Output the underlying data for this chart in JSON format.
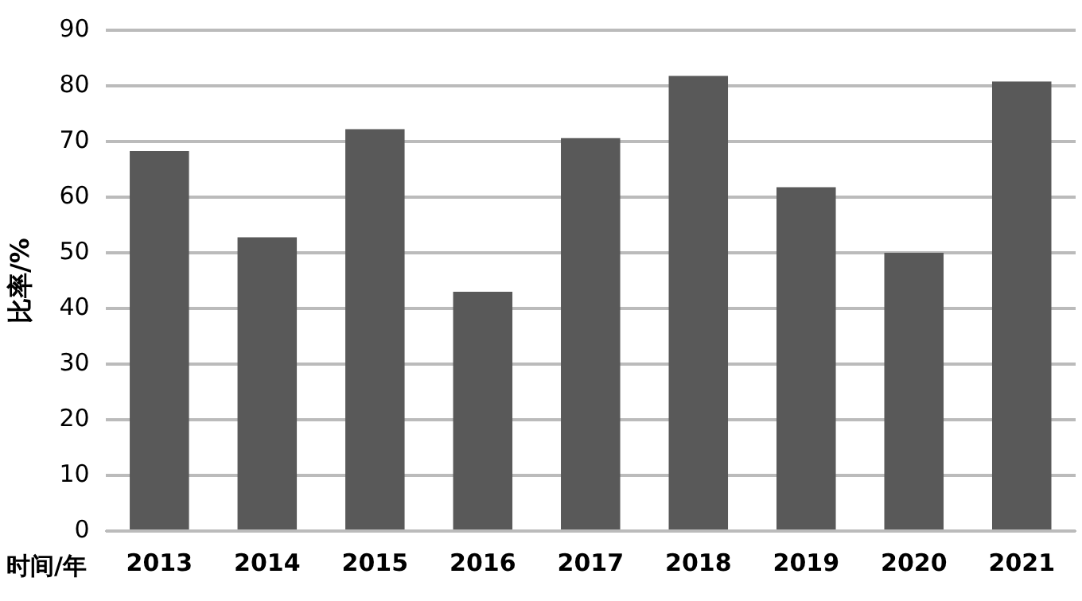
{
  "chart_data": {
    "type": "bar",
    "xlabel": "时间/年",
    "ylabel": "比率/%",
    "categories": [
      "2013",
      "2014",
      "2015",
      "2016",
      "2017",
      "2018",
      "2019",
      "2020",
      "2021"
    ],
    "values": [
      68.3,
      52.8,
      72.2,
      43,
      70.6,
      81.8,
      61.8,
      50,
      80.8
    ],
    "color": "#595959",
    "ylim": [
      0,
      90
    ],
    "yticks": [
      0,
      10,
      20,
      30,
      40,
      50,
      60,
      70,
      80,
      90
    ],
    "grid": "y",
    "legend": false
  }
}
